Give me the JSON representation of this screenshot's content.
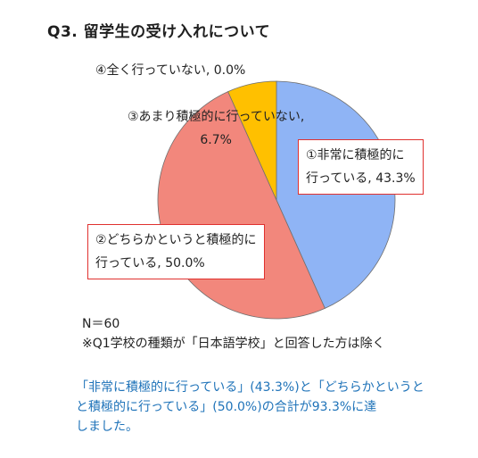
{
  "chart_data": {
    "type": "pie",
    "title": "Q3. 留学生の受け入れについて",
    "slices": [
      {
        "label": "①非常に積極的に行っている",
        "value": 43.3,
        "color": "#8fb4f5"
      },
      {
        "label": "②どちらかというと積極的に行っている",
        "value": 50.0,
        "color": "#f2877c"
      },
      {
        "label": "③あまり積極的に行っていない",
        "value": 6.7,
        "color": "#ffc000"
      },
      {
        "label": "④全く行っていない",
        "value": 0.0,
        "color": "#ffc000"
      }
    ],
    "data_labels": {
      "s1_line1": "①非常に積極的に",
      "s1_line2": "行っている, 43.3%",
      "s2_line1": "②どちらかというと積極的に",
      "s2_line2": "行っている, 50.0%",
      "s3_line1": "③あまり積極的に行っていない,",
      "s3_line2": "6.7%",
      "s4": "④全く行っていない, 0.0%"
    }
  },
  "footnote": {
    "n": "N＝60",
    "note": "※Q1学校の種類が「日本語学校」と回答した方は除く"
  },
  "summary": {
    "line1": "「非常に積極的に行っている」(43.3%)と「どちらかというと",
    "line2": "と積極的に行っている」(50.0%)の合計が93.3%に達",
    "line3": "しました。"
  }
}
